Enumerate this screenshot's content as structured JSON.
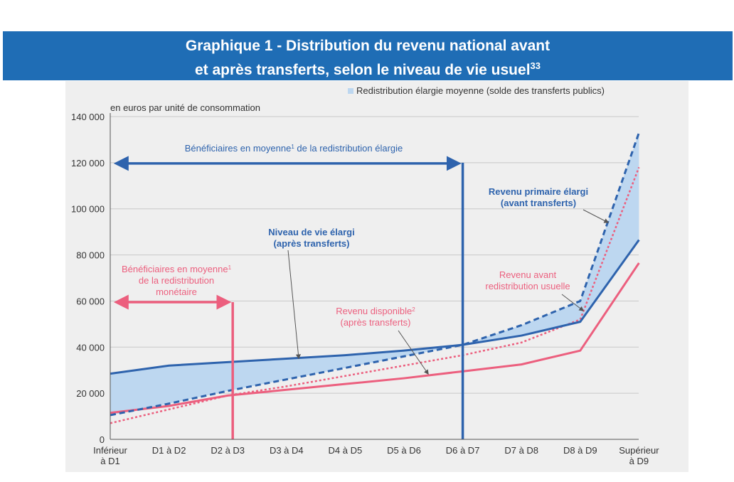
{
  "title": {
    "line1": "Graphique 1 - Distribution du revenu national avant",
    "line2": "et après transferts, selon le niveau de vie usuel",
    "footnote_ref": "33"
  },
  "chart_data": {
    "type": "line",
    "unit_label": "en euros par unité de consommation",
    "legend": {
      "fill_label": "Redistribution élargie moyenne (solde des transferts publics)",
      "position": "top-right"
    },
    "ylim": [
      0,
      140000
    ],
    "y_ticks": [
      "0",
      "20 000",
      "40 000",
      "60 000",
      "80 000",
      "100 000",
      "120 000",
      "140 000"
    ],
    "categories": [
      [
        "Inférieur",
        "à D1"
      ],
      [
        "D1 à D2"
      ],
      [
        "D2 à D3"
      ],
      [
        "D3 à D4"
      ],
      [
        "D4 à D5"
      ],
      [
        "D5 à D6"
      ],
      [
        "D6 à D7"
      ],
      [
        "D7 à D8"
      ],
      [
        "D8 à D9"
      ],
      [
        "Supérieur",
        "à D9"
      ]
    ],
    "series": [
      {
        "name": "Niveau de vie élargi (après transferts)",
        "color": "#2e63ad",
        "style": "solid",
        "values": [
          28500,
          32000,
          33500,
          35000,
          36500,
          38500,
          41000,
          45000,
          51000,
          86500
        ]
      },
      {
        "name": "Revenu primaire élargi (avant transferts)",
        "color": "#2e63ad",
        "style": "dashed",
        "values": [
          10500,
          15500,
          21000,
          26000,
          31000,
          36000,
          41000,
          49500,
          60000,
          133000
        ]
      },
      {
        "name": "Revenu avant redistribution usuelle",
        "color": "#ec5f7e",
        "style": "dotted",
        "values": [
          7000,
          13000,
          19000,
          23000,
          27500,
          32000,
          36500,
          42000,
          52000,
          118000
        ]
      },
      {
        "name": "Revenu disponible (après transferts)",
        "color": "#ec5f7e",
        "style": "solid",
        "values": [
          11500,
          14500,
          19000,
          21500,
          24000,
          26500,
          29500,
          32500,
          38500,
          76500
        ]
      }
    ],
    "beneficiaries": [
      {
        "label_lines": [
          "Bénéficiaires en moyenne",
          "de la redistribution élargie"
        ],
        "footnote": "1",
        "color": "#2e63ad",
        "threshold_category": "D6 à D7",
        "arrow_level": 120000
      },
      {
        "label_lines": [
          "Bénéficiaires en moyenne",
          "de la redistribution",
          "monétaire"
        ],
        "footnote": "1",
        "color": "#ec5f7e",
        "threshold_category": "D2 à D3",
        "arrow_level": 59500
      }
    ],
    "annotations": [
      {
        "lines": [
          "Niveau de vie élargi",
          "(après transferts)"
        ],
        "color": "#2e63ad",
        "bold": true
      },
      {
        "lines": [
          "Revenu primaire élargi",
          "(avant transferts)"
        ],
        "color": "#2e63ad",
        "bold": true
      },
      {
        "lines": [
          "Revenu avant",
          "redistribution usuelle"
        ],
        "color": "#ec5f7e",
        "bold": false
      },
      {
        "lines": [
          "Revenu disponible",
          "(après transferts)"
        ],
        "color": "#ec5f7e",
        "bold": false,
        "footnote": "2"
      }
    ]
  }
}
